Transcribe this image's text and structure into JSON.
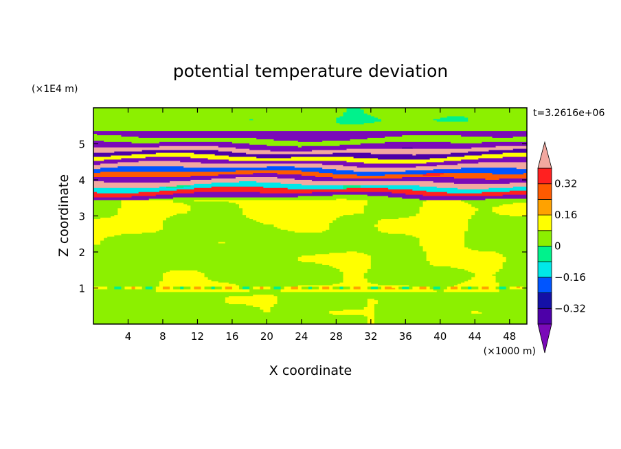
{
  "chart_data": {
    "type": "heatmap",
    "title": "potential temperature deviation",
    "xlabel": "X coordinate",
    "ylabel": "Z coordinate",
    "x_unit": "(×1000 m)",
    "y_unit": "(×1E4 m)",
    "time_label": "t=3.2616e+06",
    "xlim": [
      0,
      50
    ],
    "ylim": [
      0,
      6
    ],
    "x_ticks": [
      4,
      8,
      12,
      16,
      20,
      24,
      28,
      32,
      36,
      40,
      44,
      48
    ],
    "y_ticks": [
      1,
      2,
      3,
      4,
      5
    ],
    "colorbar": {
      "levels": [
        -0.48,
        -0.4,
        -0.32,
        -0.24,
        -0.16,
        -0.08,
        0,
        0.08,
        0.16,
        0.24,
        0.32,
        0.4,
        0.48
      ],
      "labels": [
        "0.32",
        "0.16",
        "0",
        "−0.16",
        "−0.32"
      ],
      "label_values": [
        0.32,
        0.16,
        0,
        -0.16,
        -0.32
      ],
      "colors": [
        "#7a0ab8",
        "#4d00a8",
        "#1410a6",
        "#0055ff",
        "#00e8e8",
        "#00f28c",
        "#8cf000",
        "#ffff00",
        "#ffa200",
        "#ff5a00",
        "#ff2020",
        "#f2a8a0"
      ],
      "extend": "both"
    },
    "bands": [
      {
        "z": 5.25,
        "v": -0.45
      },
      {
        "z": 5.1,
        "v": 0.05
      },
      {
        "z": 4.95,
        "v": -0.42
      },
      {
        "z": 4.82,
        "v": 0.48
      },
      {
        "z": 4.72,
        "v": -0.35
      },
      {
        "z": 4.6,
        "v": 0.12
      },
      {
        "z": 4.5,
        "v": -0.46
      },
      {
        "z": 4.38,
        "v": 0.45
      },
      {
        "z": 4.27,
        "v": -0.2
      },
      {
        "z": 4.15,
        "v": 0.3
      },
      {
        "z": 4.05,
        "v": -0.45
      },
      {
        "z": 3.92,
        "v": 0.48
      },
      {
        "z": 3.8,
        "v": -0.1
      },
      {
        "z": 3.68,
        "v": 0.35
      },
      {
        "z": 3.57,
        "v": -0.45
      },
      {
        "z": 3.45,
        "v": 0.04
      },
      {
        "z": 3.3,
        "v": 0.1
      }
    ]
  }
}
